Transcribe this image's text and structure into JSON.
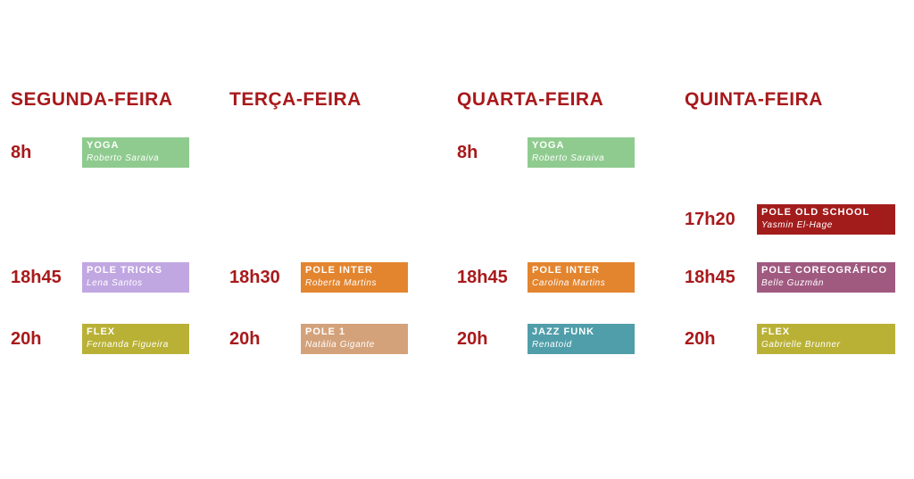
{
  "days": [
    {
      "name": "SEGUNDA-FEIRA",
      "slots": [
        {
          "time": "8h",
          "class": "YOGA",
          "teacher": "Roberto Saraiva",
          "color": "#8fcb8f"
        },
        {
          "time": "18h45",
          "class": "POLE TRICKS",
          "teacher": "Lena Santos",
          "color": "#c1a7e2"
        },
        {
          "time": "20h",
          "class": "FLEX",
          "teacher": "Fernanda Figueira",
          "color": "#b9b135"
        }
      ]
    },
    {
      "name": "TERÇA-FEIRA",
      "slots": [
        {
          "time": "18h30",
          "class": "POLE INTER",
          "teacher": "Roberta Martins",
          "color": "#e3852f"
        },
        {
          "time": "20h",
          "class": "POLE 1",
          "teacher": "Natália Gigante",
          "color": "#d4a27a"
        }
      ]
    },
    {
      "name": "QUARTA-FEIRA",
      "slots": [
        {
          "time": "8h",
          "class": "YOGA",
          "teacher": "Roberto Saraiva",
          "color": "#8fcb8f"
        },
        {
          "time": "18h45",
          "class": "POLE INTER",
          "teacher": "Carolina Martins",
          "color": "#e3852f"
        },
        {
          "time": "20h",
          "class": "JAZZ FUNK",
          "teacher": "Renatoid",
          "color": "#509ea9"
        }
      ]
    },
    {
      "name": "QUINTA-FEIRA",
      "slots": [
        {
          "time": "17h20",
          "class": "POLE OLD SCHOOL",
          "teacher": "Yasmin El-Hage",
          "color": "#a31c1c"
        },
        {
          "time": "18h45",
          "class": "POLE COREOGRÁFICO",
          "teacher": "Belle Guzmán",
          "color": "#a05a80"
        },
        {
          "time": "20h",
          "class": "FLEX",
          "teacher": "Gabrielle Brunner",
          "color": "#b9b135"
        }
      ]
    }
  ]
}
